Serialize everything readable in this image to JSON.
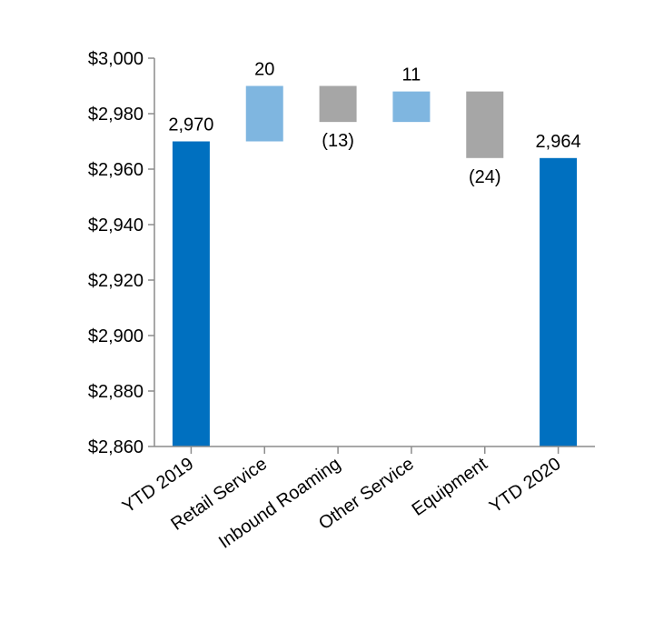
{
  "chart_data": {
    "type": "bar",
    "subtype": "waterfall",
    "title": "",
    "xlabel": "",
    "ylabel": "",
    "ylim": [
      2860,
      3000
    ],
    "yticks": [
      2860,
      2880,
      2900,
      2920,
      2940,
      2960,
      2980,
      3000
    ],
    "ytick_labels": [
      "$2,860",
      "$2,880",
      "$2,900",
      "$2,920",
      "$2,940",
      "$2,960",
      "$2,980",
      "$3,000"
    ],
    "grid": false,
    "legend": "none",
    "categories": [
      "YTD 2019",
      "Retail Service",
      "Inbound Roaming",
      "Other Service",
      "Equipment",
      "YTD 2020"
    ],
    "bars": [
      {
        "category": "YTD 2019",
        "kind": "total",
        "start": 2860,
        "end": 2970,
        "label": "2,970",
        "color": "#0070c0"
      },
      {
        "category": "Retail Service",
        "kind": "increase",
        "start": 2970,
        "end": 2990,
        "label": "20",
        "color": "#7fb6e0"
      },
      {
        "category": "Inbound Roaming",
        "kind": "decrease",
        "start": 2990,
        "end": 2977,
        "label": "(13)",
        "color": "#a6a6a6"
      },
      {
        "category": "Other Service",
        "kind": "increase",
        "start": 2977,
        "end": 2988,
        "label": "11",
        "color": "#7fb6e0"
      },
      {
        "category": "Equipment",
        "kind": "decrease",
        "start": 2988,
        "end": 2964,
        "label": "(24)",
        "color": "#a6a6a6"
      },
      {
        "category": "YTD 2020",
        "kind": "total",
        "start": 2860,
        "end": 2964,
        "label": "2,964",
        "color": "#0070c0"
      }
    ]
  }
}
